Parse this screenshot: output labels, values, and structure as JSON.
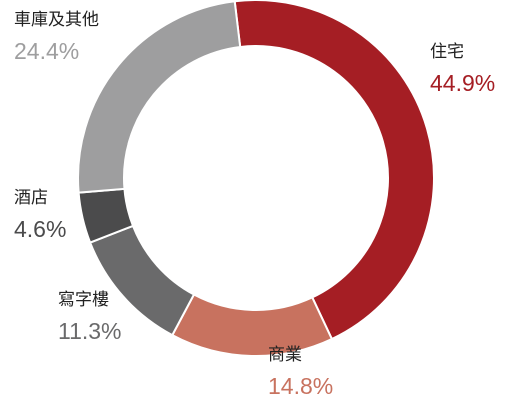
{
  "chart_data": {
    "type": "pie",
    "categories": [
      "住宅",
      "商業",
      "寫字樓",
      "酒店",
      "車庫及其他"
    ],
    "values": [
      44.9,
      14.8,
      11.3,
      4.6,
      24.4
    ],
    "value_labels": [
      "44.9%",
      "14.8%",
      "11.3%",
      "4.6%",
      "24.4%"
    ],
    "colors": [
      "#a51e24",
      "#c8725f",
      "#6a6a6b",
      "#4b4b4c",
      "#9e9e9f"
    ]
  }
}
